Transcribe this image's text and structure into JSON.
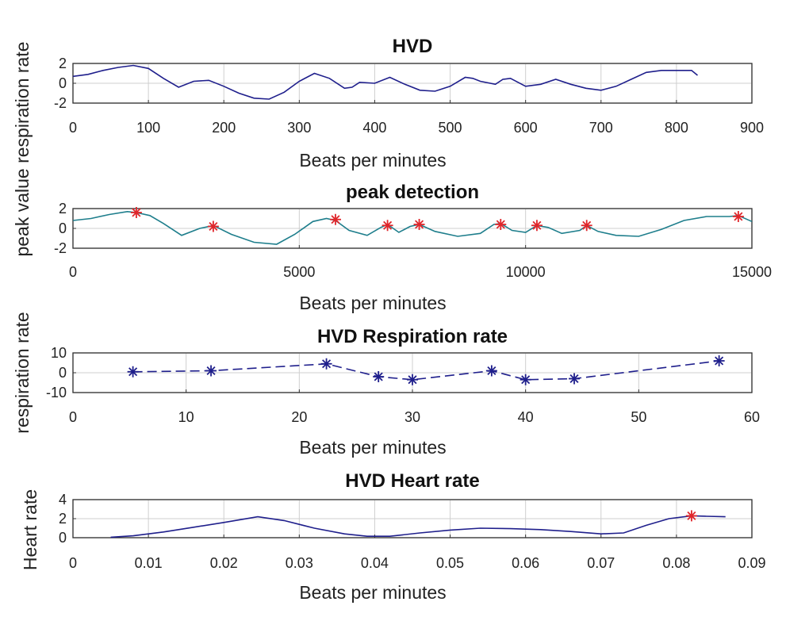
{
  "chart_data": [
    {
      "type": "line",
      "title": "HVD",
      "xlabel": "Beats per minutes",
      "ylabel": "",
      "xlim": [
        0,
        900
      ],
      "ylim": [
        -2,
        2
      ],
      "xticks": [
        "0",
        "100",
        "200",
        "300",
        "400",
        "500",
        "600",
        "700",
        "800",
        "900"
      ],
      "yticks": [
        "-2",
        "0",
        "2"
      ],
      "grid": true,
      "series": [
        {
          "name": "HVD",
          "color": "#1f1f8c",
          "style": "solid",
          "x": [
            0,
            20,
            40,
            60,
            80,
            100,
            120,
            140,
            160,
            180,
            200,
            220,
            240,
            260,
            280,
            300,
            320,
            340,
            360,
            370,
            380,
            400,
            420,
            440,
            460,
            480,
            500,
            520,
            530,
            540,
            560,
            570,
            580,
            600,
            620,
            640,
            660,
            680,
            700,
            720,
            740,
            760,
            780,
            800,
            820,
            828
          ],
          "y": [
            0.7,
            0.9,
            1.3,
            1.6,
            1.8,
            1.5,
            0.5,
            -0.4,
            0.2,
            0.3,
            -0.3,
            -1.0,
            -1.5,
            -1.6,
            -0.9,
            0.2,
            1.0,
            0.5,
            -0.5,
            -0.4,
            0.1,
            0.0,
            0.6,
            -0.1,
            -0.7,
            -0.8,
            -0.3,
            0.6,
            0.5,
            0.2,
            -0.1,
            0.4,
            0.5,
            -0.3,
            -0.1,
            0.4,
            -0.1,
            -0.5,
            -0.7,
            -0.3,
            0.4,
            1.1,
            1.3,
            1.3,
            1.3,
            0.8
          ]
        }
      ],
      "markers": []
    },
    {
      "type": "line",
      "title": "peak detection",
      "xlabel": "Beats per minutes",
      "ylabel": "",
      "xlim": [
        0,
        15000
      ],
      "ylim": [
        -2,
        2
      ],
      "xticks": [
        "0",
        "5000",
        "10000",
        "15000"
      ],
      "yticks": [
        "-2",
        "0",
        "2"
      ],
      "grid": true,
      "series": [
        {
          "name": "signal",
          "color": "#1e7e8c",
          "style": "solid",
          "x": [
            0,
            400,
            800,
            1200,
            1400,
            1700,
            2000,
            2400,
            2800,
            3100,
            3500,
            4000,
            4500,
            4900,
            5300,
            5600,
            5800,
            6100,
            6500,
            6800,
            6950,
            7200,
            7450,
            7650,
            8000,
            8500,
            9000,
            9300,
            9450,
            9700,
            10000,
            10250,
            10500,
            10800,
            11200,
            11350,
            11600,
            12000,
            12500,
            13000,
            13500,
            14000,
            14500,
            14700,
            15000
          ],
          "y": [
            0.8,
            1.0,
            1.4,
            1.7,
            1.6,
            1.3,
            0.5,
            -0.7,
            0.0,
            0.3,
            -0.6,
            -1.4,
            -1.6,
            -0.6,
            0.7,
            1.0,
            0.8,
            -0.2,
            -0.7,
            0.1,
            0.4,
            -0.4,
            0.2,
            0.4,
            -0.3,
            -0.8,
            -0.5,
            0.4,
            0.5,
            -0.2,
            -0.4,
            0.3,
            0.1,
            -0.5,
            -0.2,
            0.3,
            -0.3,
            -0.7,
            -0.8,
            -0.1,
            0.8,
            1.2,
            1.2,
            1.3,
            0.7
          ]
        }
      ],
      "markers": [
        {
          "x": 1400,
          "y": 1.6,
          "color": "#e0262b"
        },
        {
          "x": 3100,
          "y": 0.2,
          "color": "#e0262b"
        },
        {
          "x": 5800,
          "y": 0.9,
          "color": "#e0262b"
        },
        {
          "x": 6950,
          "y": 0.3,
          "color": "#e0262b"
        },
        {
          "x": 7650,
          "y": 0.4,
          "color": "#e0262b"
        },
        {
          "x": 9450,
          "y": 0.4,
          "color": "#e0262b"
        },
        {
          "x": 10250,
          "y": 0.3,
          "color": "#e0262b"
        },
        {
          "x": 11350,
          "y": 0.3,
          "color": "#e0262b"
        },
        {
          "x": 14700,
          "y": 1.2,
          "color": "#e0262b"
        }
      ]
    },
    {
      "type": "line",
      "title": "HVD Respiration rate",
      "xlabel": "Beats per minutes",
      "ylabel": "",
      "xlim": [
        0,
        60
      ],
      "ylim": [
        -10,
        10
      ],
      "xticks": [
        "0",
        "10",
        "20",
        "30",
        "40",
        "50",
        "60"
      ],
      "yticks": [
        "-10",
        "0",
        "10"
      ],
      "grid": true,
      "series": [
        {
          "name": "respiration",
          "color": "#1f1f8c",
          "style": "dashed",
          "x": [
            5.3,
            12.2,
            22.4,
            27,
            30,
            37,
            40,
            44.3,
            57.1
          ],
          "y": [
            0.5,
            1.0,
            4.5,
            -2.0,
            -3.5,
            1.0,
            -3.5,
            -3.0,
            6.0
          ]
        }
      ],
      "markers": [
        {
          "x": 5.3,
          "y": 0.5,
          "color": "#1f1f8c"
        },
        {
          "x": 12.2,
          "y": 1.0,
          "color": "#1f1f8c"
        },
        {
          "x": 22.4,
          "y": 4.5,
          "color": "#1f1f8c"
        },
        {
          "x": 27,
          "y": -2.0,
          "color": "#1f1f8c"
        },
        {
          "x": 30,
          "y": -3.5,
          "color": "#1f1f8c"
        },
        {
          "x": 37,
          "y": 1.0,
          "color": "#1f1f8c"
        },
        {
          "x": 40,
          "y": -3.5,
          "color": "#1f1f8c"
        },
        {
          "x": 44.3,
          "y": -3.0,
          "color": "#1f1f8c"
        },
        {
          "x": 57.1,
          "y": 6.0,
          "color": "#1f1f8c"
        }
      ]
    },
    {
      "type": "line",
      "title": "HVD Heart rate",
      "xlabel": "Beats per minutes",
      "ylabel": "Heart rate",
      "xlim": [
        0,
        0.09
      ],
      "ylim": [
        0,
        4
      ],
      "xticks": [
        "0",
        "0.01",
        "0.02",
        "0.03",
        "0.04",
        "0.05",
        "0.06",
        "0.07",
        "0.08",
        "0.09"
      ],
      "yticks": [
        "0",
        "2",
        "4"
      ],
      "grid": true,
      "series": [
        {
          "name": "heart",
          "color": "#1f1f8c",
          "style": "solid",
          "x": [
            0.005,
            0.008,
            0.012,
            0.016,
            0.02,
            0.0245,
            0.028,
            0.032,
            0.036,
            0.039,
            0.042,
            0.046,
            0.05,
            0.054,
            0.058,
            0.062,
            0.066,
            0.07,
            0.073,
            0.076,
            0.079,
            0.082,
            0.084,
            0.0865
          ],
          "y": [
            0.05,
            0.2,
            0.6,
            1.1,
            1.6,
            2.2,
            1.8,
            1.0,
            0.4,
            0.15,
            0.15,
            0.5,
            0.8,
            1.0,
            0.95,
            0.85,
            0.65,
            0.4,
            0.5,
            1.3,
            2.0,
            2.3,
            2.25,
            2.2
          ]
        }
      ],
      "markers": [
        {
          "x": 0.082,
          "y": 2.3,
          "color": "#e0262b"
        }
      ]
    }
  ],
  "shared": {
    "y_axis_labels": {
      "upper": "peak value respiration rate",
      "middle": "respiration rate",
      "lower": "Heart rate"
    }
  }
}
